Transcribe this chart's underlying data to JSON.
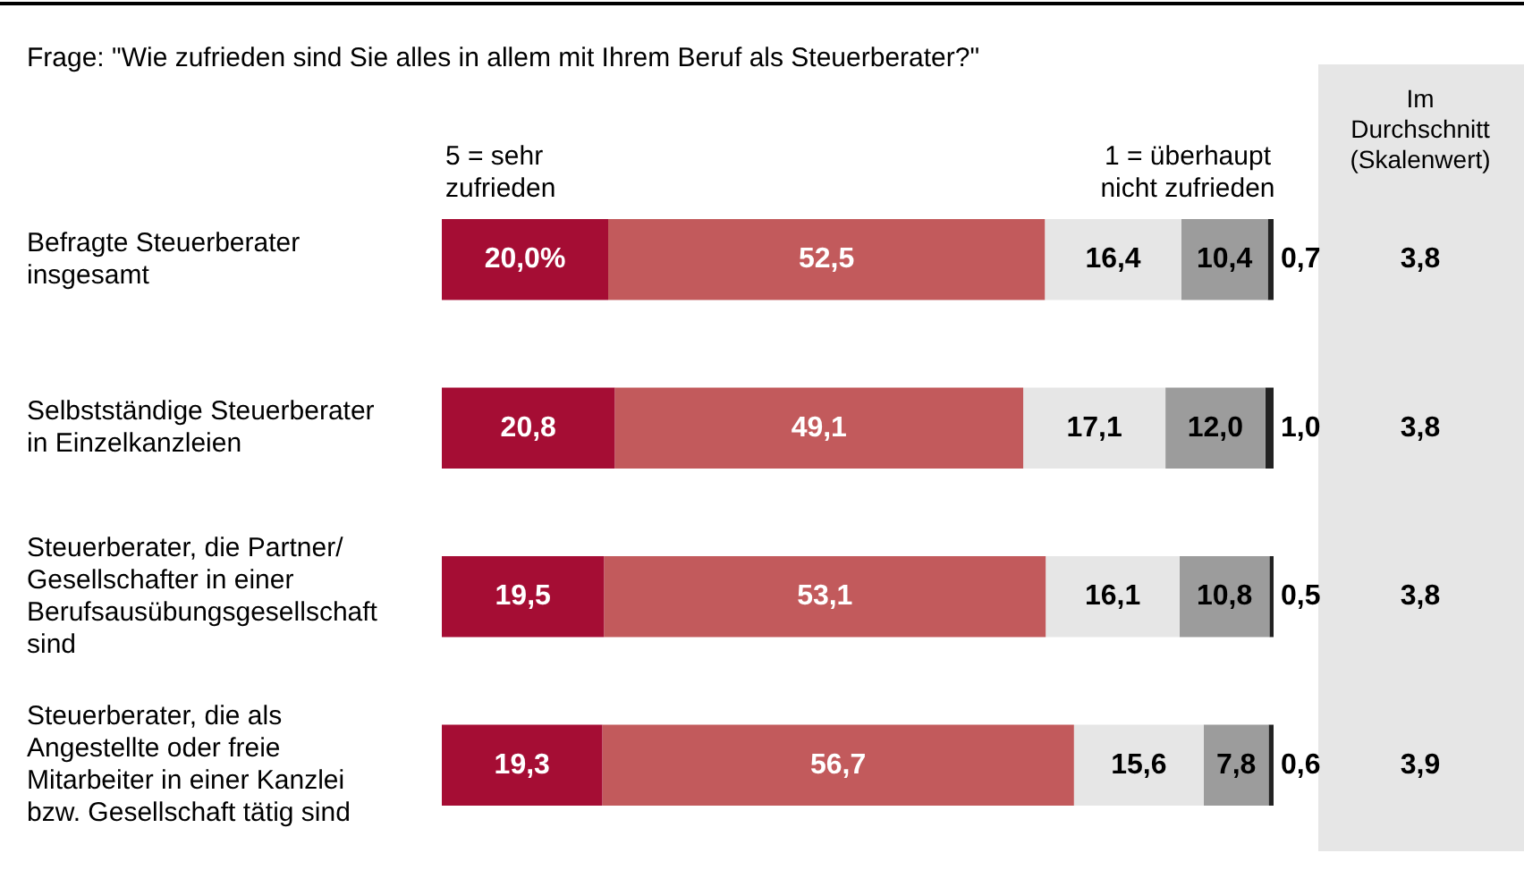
{
  "chart_data": {
    "type": "bar",
    "orientation": "horizontal",
    "stacked": true,
    "title": "Frage: \"Wie zufrieden sind Sie alles in allem mit Ihrem Beruf als Steuerberater?\"",
    "categories": [
      "Befragte Steuerberater insgesamt",
      "Selbstständige Steuerberater in Einzelkanzleien",
      "Steuerberater, die Partner/ Gesellschafter in einer Berufsausübungsgesellschaft sind",
      "Steuerberater, die als Angestellte oder freie Mitarbeiter in einer Kanzlei bzw. Gesellschaft tätig sind"
    ],
    "xlim": [
      0,
      100
    ],
    "tick_labels": "y",
    "legend": false,
    "series": [
      {
        "name": "5 = sehr zufrieden",
        "color": "#a50d34",
        "values": [
          20.0,
          20.8,
          19.5,
          19.3
        ],
        "value_labels": [
          "20,0%",
          "20,8",
          "19,5",
          "19,3"
        ]
      },
      {
        "color": "#c25a5c",
        "values": [
          52.5,
          49.1,
          53.1,
          56.7
        ],
        "value_labels": [
          "52,5",
          "49,1",
          "53,1",
          "56,7"
        ]
      },
      {
        "color": "#e6e6e6",
        "values": [
          16.4,
          17.1,
          16.1,
          15.6
        ],
        "value_labels": [
          "16,4",
          "17,1",
          "16,1",
          "15,6"
        ]
      },
      {
        "color": "#9c9c9c",
        "values": [
          10.4,
          12.0,
          10.8,
          7.8
        ],
        "value_labels": [
          "10,4",
          "12,0",
          "10,8",
          "7,8"
        ]
      },
      {
        "name": "1 = überhaupt nicht zufrieden",
        "color": "#222222",
        "values": [
          0.7,
          1.0,
          0.5,
          0.6
        ],
        "value_labels": [
          "0,7",
          "1,0",
          "0,5",
          "0,6"
        ]
      }
    ],
    "annotations": [
      "Im Durchschnitt (Skalenwert)",
      "3,8",
      "3,8",
      "3,8",
      "3,9"
    ]
  }
}
